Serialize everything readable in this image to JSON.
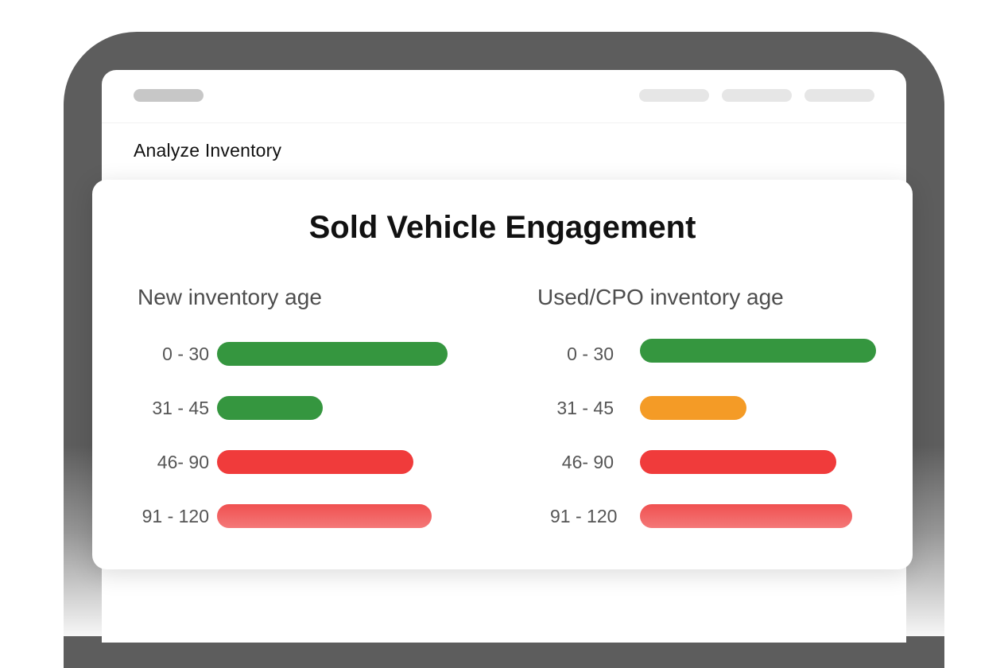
{
  "screen": {
    "title": "Analyze Inventory"
  },
  "card": {
    "title": "Sold Vehicle Engagement"
  },
  "colors": {
    "green": "#35963f",
    "orange": "#f49b26",
    "red": "#f03b3b",
    "light_red": "#f26666"
  },
  "chart_data": [
    {
      "type": "bar",
      "orientation": "horizontal",
      "title": "New inventory age",
      "categories": [
        "0 - 30",
        "31 - 45",
        "46- 90",
        "91 - 120"
      ],
      "values": [
        100,
        46,
        85,
        93
      ],
      "colors": [
        "#35963f",
        "#35963f",
        "#f03b3b",
        "#f26666"
      ]
    },
    {
      "type": "bar",
      "orientation": "horizontal",
      "title": "Used/CPO inventory age",
      "categories": [
        "0 - 30",
        "31 - 45",
        "46- 90",
        "91 - 120"
      ],
      "values": [
        100,
        45,
        83,
        90
      ],
      "colors": [
        "#35963f",
        "#f49b26",
        "#f03b3b",
        "#f26666"
      ]
    }
  ]
}
